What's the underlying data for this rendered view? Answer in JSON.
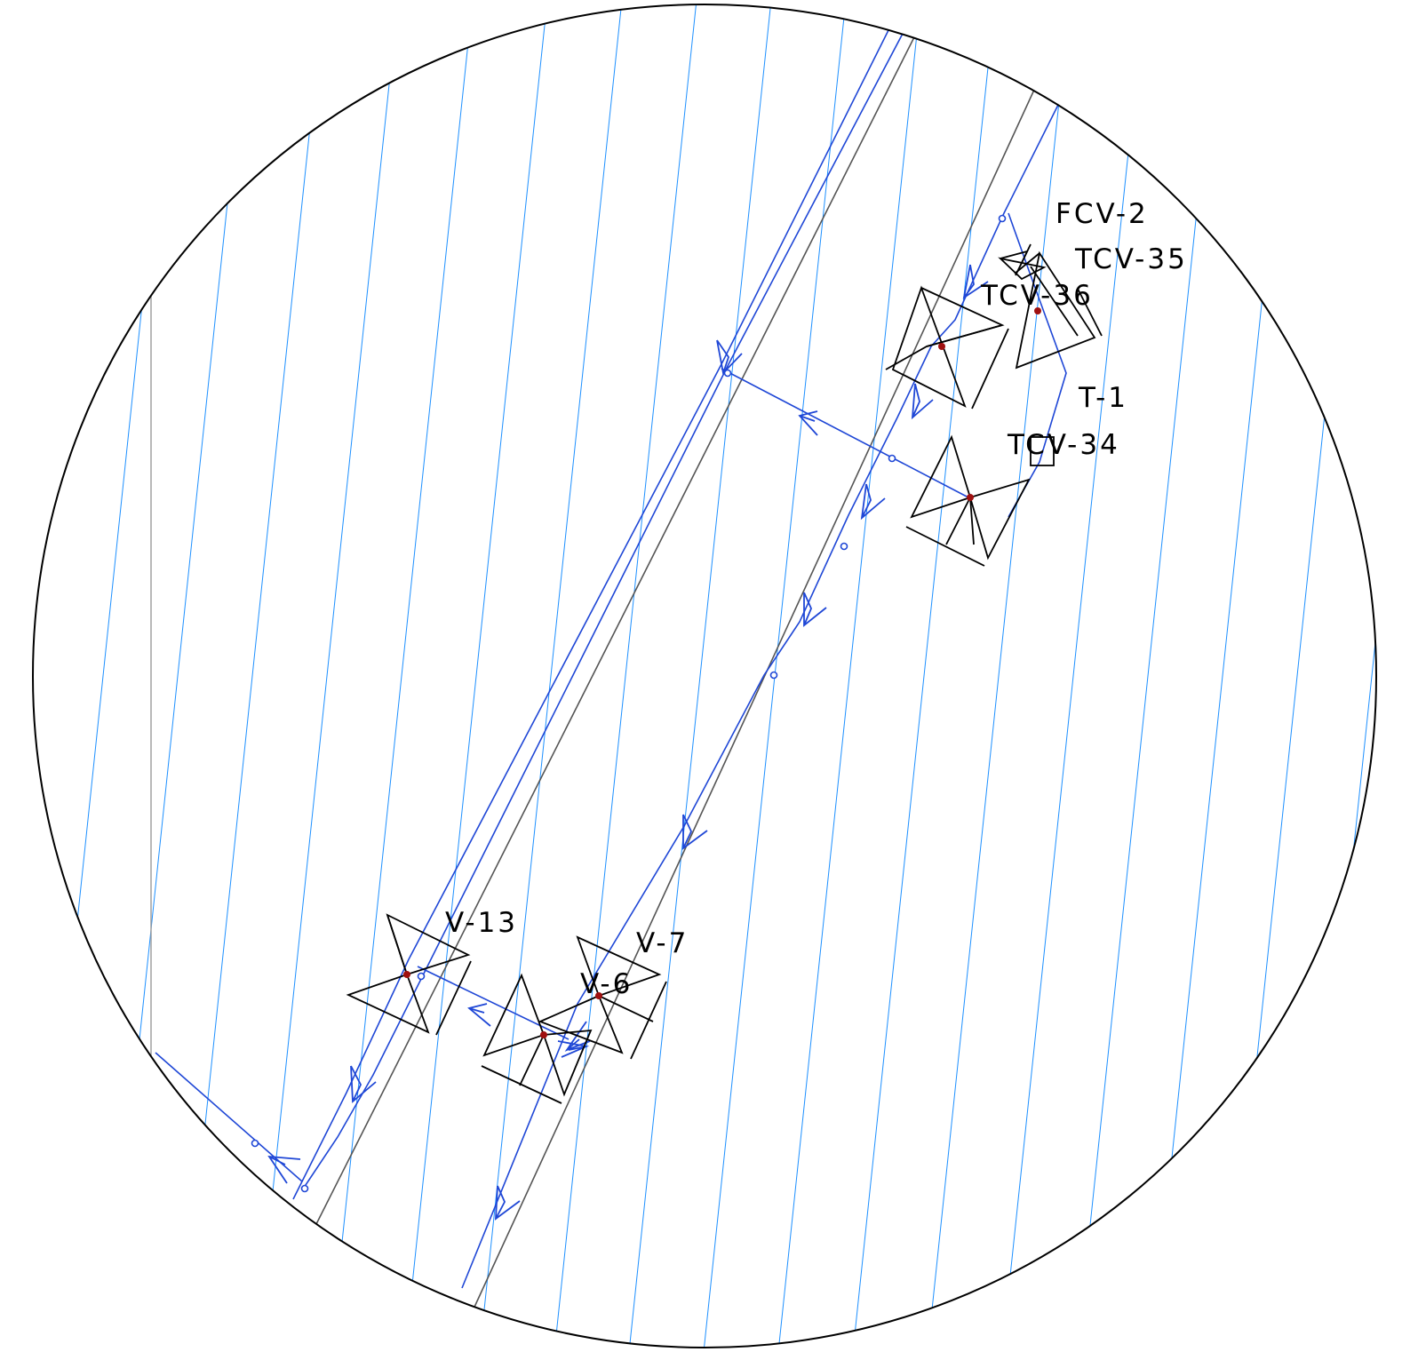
{
  "diagram": {
    "colors": {
      "background": "#ffffff",
      "boundary": "#000000",
      "hatch": "#1e90ff",
      "pipe": "#1f47d6",
      "guide": "#555555",
      "valve_symbol": "#000000",
      "valve_marker": "#a01010"
    },
    "labels": {
      "fcv_2": "FCV-2",
      "tcv_35": "TCV-35",
      "tcv_36": "TCV-36",
      "t_1": "T-1",
      "tcv_34": "TCV-34",
      "v_13": "V-13",
      "v_7": "V-7",
      "v_6": "V-6"
    },
    "symbols": {
      "valve": "bowtie-valve-icon",
      "flow_arrow": "flow-arrow-icon",
      "tank": "square-tank-icon",
      "node": "connection-node-icon"
    }
  }
}
